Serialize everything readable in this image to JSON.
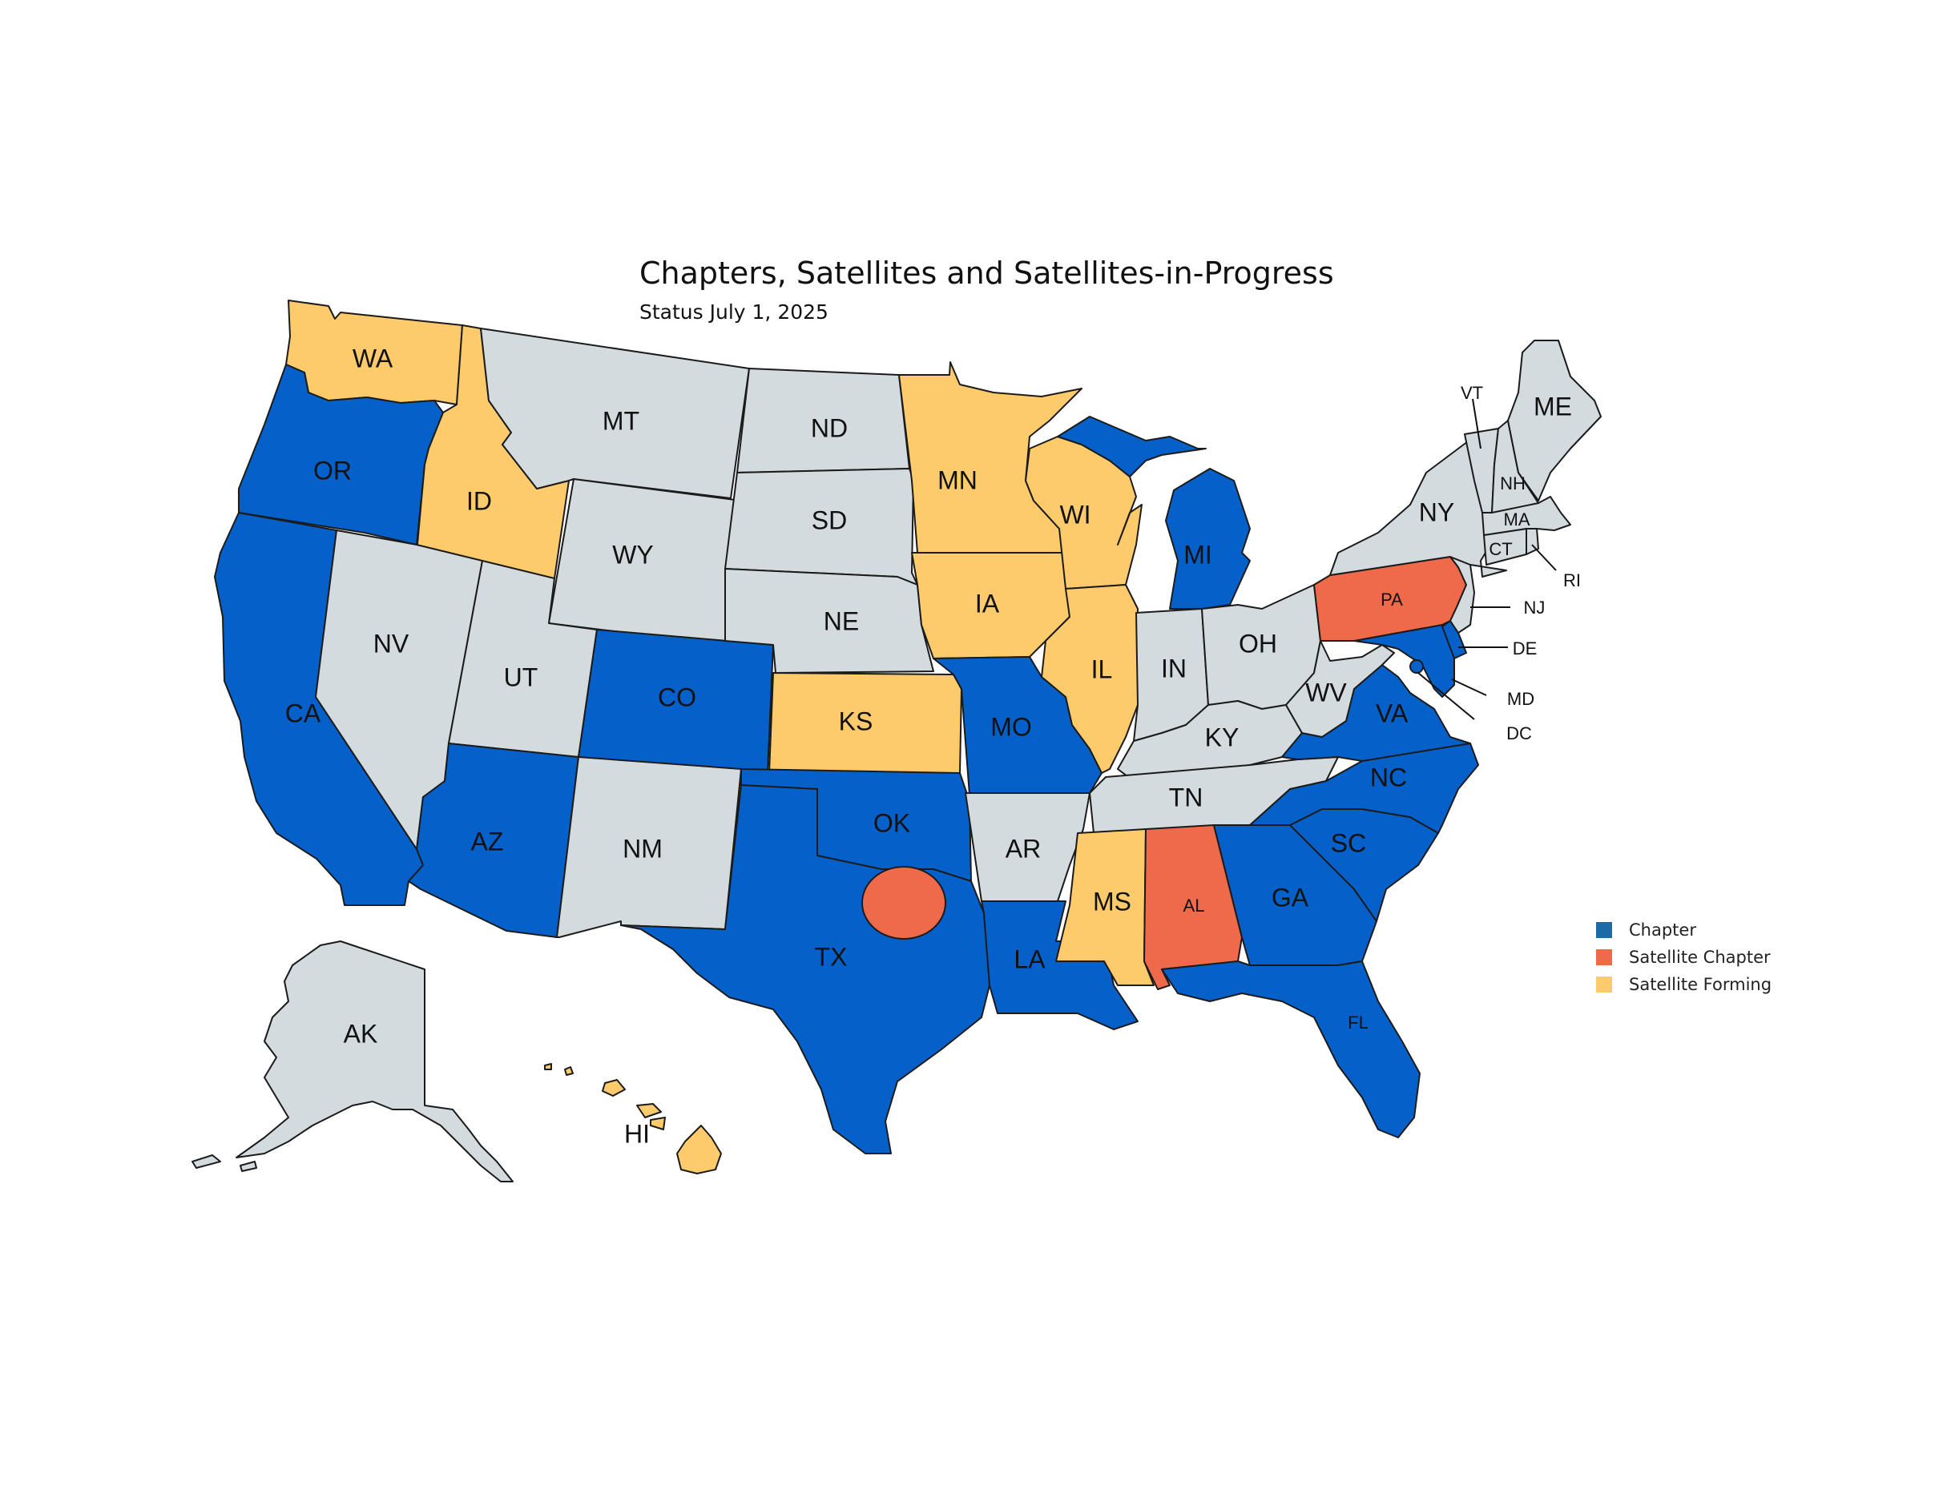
{
  "title": "Chapters, Satellites and Satellites-in-Progress",
  "subtitle": "Status  July 1, 2025",
  "colors": {
    "chapter": "#0561C9",
    "satellite_chapter": "#EF694B",
    "satellite_forming": "#FDCB6B",
    "none": "#D3DBDE",
    "legend_chapter": "#1C6BA6"
  },
  "legend": [
    {
      "key": "chapter",
      "label": "Chapter"
    },
    {
      "key": "satellite_chapter",
      "label": "Satellite Chapter"
    },
    {
      "key": "satellite_forming",
      "label": "Satellite Forming"
    }
  ],
  "states": {
    "WA": {
      "label": "WA",
      "status": "satellite_forming"
    },
    "OR": {
      "label": "OR",
      "status": "chapter"
    },
    "CA": {
      "label": "CA",
      "status": "chapter"
    },
    "ID": {
      "label": "ID",
      "status": "satellite_forming"
    },
    "NV": {
      "label": "NV",
      "status": "none"
    },
    "MT": {
      "label": "MT",
      "status": "none"
    },
    "WY": {
      "label": "WY",
      "status": "none"
    },
    "UT": {
      "label": "UT",
      "status": "none"
    },
    "AZ": {
      "label": "AZ",
      "status": "chapter"
    },
    "CO": {
      "label": "CO",
      "status": "chapter"
    },
    "NM": {
      "label": "NM",
      "status": "none"
    },
    "ND": {
      "label": "ND",
      "status": "none"
    },
    "SD": {
      "label": "SD",
      "status": "none"
    },
    "NE": {
      "label": "NE",
      "status": "none"
    },
    "KS": {
      "label": "KS",
      "status": "satellite_forming"
    },
    "OK": {
      "label": "OK",
      "status": "chapter"
    },
    "TX": {
      "label": "TX",
      "status": "chapter"
    },
    "MN": {
      "label": "MN",
      "status": "satellite_forming"
    },
    "IA": {
      "label": "IA",
      "status": "satellite_forming"
    },
    "MO": {
      "label": "MO",
      "status": "chapter"
    },
    "AR": {
      "label": "AR",
      "status": "none"
    },
    "LA": {
      "label": "LA",
      "status": "chapter"
    },
    "WI": {
      "label": "WI",
      "status": "satellite_forming"
    },
    "IL": {
      "label": "IL",
      "status": "satellite_forming"
    },
    "MI": {
      "label": "MI",
      "status": "chapter"
    },
    "IN": {
      "label": "IN",
      "status": "none"
    },
    "OH": {
      "label": "OH",
      "status": "none"
    },
    "KY": {
      "label": "KY",
      "status": "none"
    },
    "TN": {
      "label": "TN",
      "status": "none"
    },
    "MS": {
      "label": "MS",
      "status": "satellite_forming"
    },
    "AL": {
      "label": "AL",
      "status": "satellite_chapter"
    },
    "GA": {
      "label": "GA",
      "status": "chapter"
    },
    "FL": {
      "label": "FL",
      "status": "chapter"
    },
    "SC": {
      "label": "SC",
      "status": "chapter"
    },
    "NC": {
      "label": "NC",
      "status": "chapter"
    },
    "VA": {
      "label": "VA",
      "status": "chapter"
    },
    "WV": {
      "label": "WV",
      "status": "none"
    },
    "MD": {
      "label": "MD",
      "status": "chapter"
    },
    "DE": {
      "label": "DE",
      "status": "chapter"
    },
    "DC": {
      "label": "DC",
      "status": "chapter"
    },
    "PA": {
      "label": "PA",
      "status": "satellite_chapter"
    },
    "NJ": {
      "label": "NJ",
      "status": "none"
    },
    "NY": {
      "label": "NY",
      "status": "none"
    },
    "CT": {
      "label": "CT",
      "status": "none"
    },
    "RI": {
      "label": "RI",
      "status": "none"
    },
    "MA": {
      "label": "MA",
      "status": "none"
    },
    "VT": {
      "label": "VT",
      "status": "none"
    },
    "NH": {
      "label": "NH",
      "status": "none"
    },
    "ME": {
      "label": "ME",
      "status": "none"
    },
    "AK": {
      "label": "AK",
      "status": "none"
    },
    "HI": {
      "label": "HI",
      "status": "satellite_forming"
    }
  },
  "markers": [
    {
      "name": "north-texas-satellite",
      "status": "satellite_chapter"
    }
  ]
}
